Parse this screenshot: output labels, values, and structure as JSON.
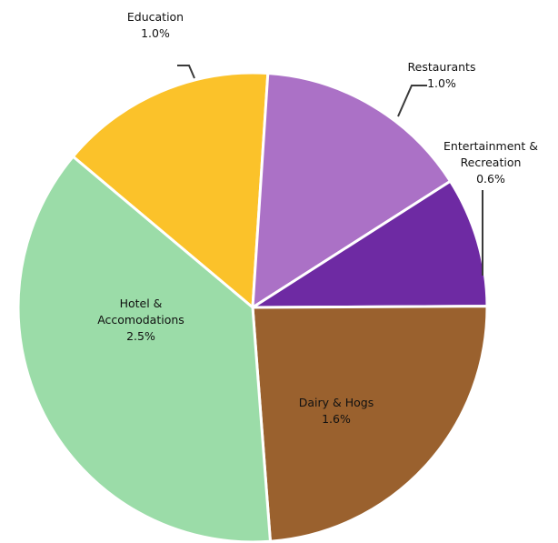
{
  "chart_data": {
    "type": "pie",
    "title": "",
    "slices": [
      {
        "name": "Education",
        "value": 1.0,
        "value_label": "1.0%",
        "label_lines": [
          "Education"
        ],
        "color": "#FBC22A",
        "label_pos": "outside"
      },
      {
        "name": "Restaurants",
        "value": 1.0,
        "value_label": "1.0%",
        "label_lines": [
          "Restaurants"
        ],
        "color": "#AB71C6",
        "label_pos": "outside"
      },
      {
        "name": "Entertainment & Recreation",
        "value": 0.6,
        "value_label": "0.6%",
        "label_lines": [
          "Entertainment &",
          "Recreation"
        ],
        "color": "#6E2AA3",
        "label_pos": "outside"
      },
      {
        "name": "Dairy & Hogs",
        "value": 1.6,
        "value_label": "1.6%",
        "label_lines": [
          "Dairy & Hogs"
        ],
        "color": "#9A612E",
        "label_pos": "inside"
      },
      {
        "name": "Hotel & Accomodations",
        "value": 2.5,
        "value_label": "2.5%",
        "label_lines": [
          "Hotel &",
          "Accomodations"
        ],
        "color": "#9BDCA8",
        "label_pos": "inside"
      }
    ]
  }
}
